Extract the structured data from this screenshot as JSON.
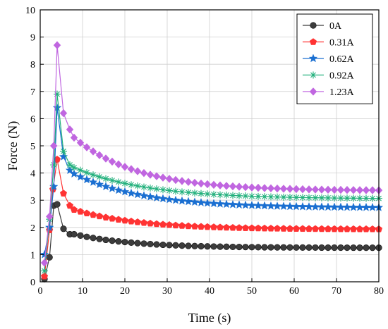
{
  "chart_data": {
    "type": "line",
    "xlabel": "Time (s)",
    "ylabel": "Force (N)",
    "xlim": [
      0,
      80
    ],
    "ylim": [
      0,
      10
    ],
    "xticks": [
      0,
      10,
      20,
      30,
      40,
      50,
      60,
      70,
      80
    ],
    "yticks": [
      0,
      1,
      2,
      3,
      4,
      5,
      6,
      7,
      8,
      9,
      10
    ],
    "grid": true,
    "legend_position": "top-right",
    "series": [
      {
        "name": "0A",
        "color": "#3c3c3c",
        "marker": "circle",
        "start": [
          [
            1,
            0.1
          ],
          [
            2.2,
            0.9
          ],
          [
            3.2,
            2.8
          ],
          [
            4,
            2.85
          ],
          [
            5.5,
            1.95
          ],
          [
            7,
            1.75
          ]
        ],
        "decay": {
          "from": 8,
          "to": 80,
          "step": 1.5,
          "base": 1.25,
          "amp": 0.5,
          "tau": 14
        }
      },
      {
        "name": "0.31A",
        "color": "#ff3333",
        "marker": "pentagon",
        "start": [
          [
            1,
            0.2
          ],
          [
            2.2,
            1.9
          ],
          [
            3,
            3.4
          ],
          [
            4,
            4.5
          ],
          [
            5.5,
            3.25
          ],
          [
            7,
            2.8
          ]
        ],
        "decay": {
          "from": 8,
          "to": 80,
          "step": 1.5,
          "base": 1.93,
          "amp": 0.72,
          "tau": 15
        }
      },
      {
        "name": "0.62A",
        "color": "#1a6fd1",
        "marker": "star",
        "start": [
          [
            1,
            1.0
          ],
          [
            2.2,
            2.0
          ],
          [
            3.2,
            3.5
          ],
          [
            4,
            6.4
          ],
          [
            5.5,
            4.6
          ],
          [
            7,
            4.1
          ]
        ],
        "decay": {
          "from": 8,
          "to": 80,
          "step": 1.5,
          "base": 2.72,
          "amp": 1.25,
          "tau": 16
        }
      },
      {
        "name": "0.92A",
        "color": "#22b07c",
        "marker": "asterisk",
        "start": [
          [
            1,
            0.4
          ],
          [
            2.2,
            2.3
          ],
          [
            3.2,
            4.3
          ],
          [
            4,
            6.9
          ],
          [
            5.5,
            4.8
          ],
          [
            7,
            4.3
          ]
        ],
        "decay": {
          "from": 8,
          "to": 80,
          "step": 1.5,
          "base": 3.05,
          "amp": 1.15,
          "tau": 17
        }
      },
      {
        "name": "1.23A",
        "color": "#c066e0",
        "marker": "diamond",
        "start": [
          [
            1,
            0.7
          ],
          [
            2.2,
            2.4
          ],
          [
            3.2,
            5.0
          ],
          [
            4,
            8.7
          ],
          [
            5.5,
            6.2
          ],
          [
            7,
            5.6
          ]
        ],
        "decay": {
          "from": 8,
          "to": 80,
          "step": 1.5,
          "base": 3.35,
          "amp": 1.95,
          "tau": 15
        }
      }
    ]
  }
}
